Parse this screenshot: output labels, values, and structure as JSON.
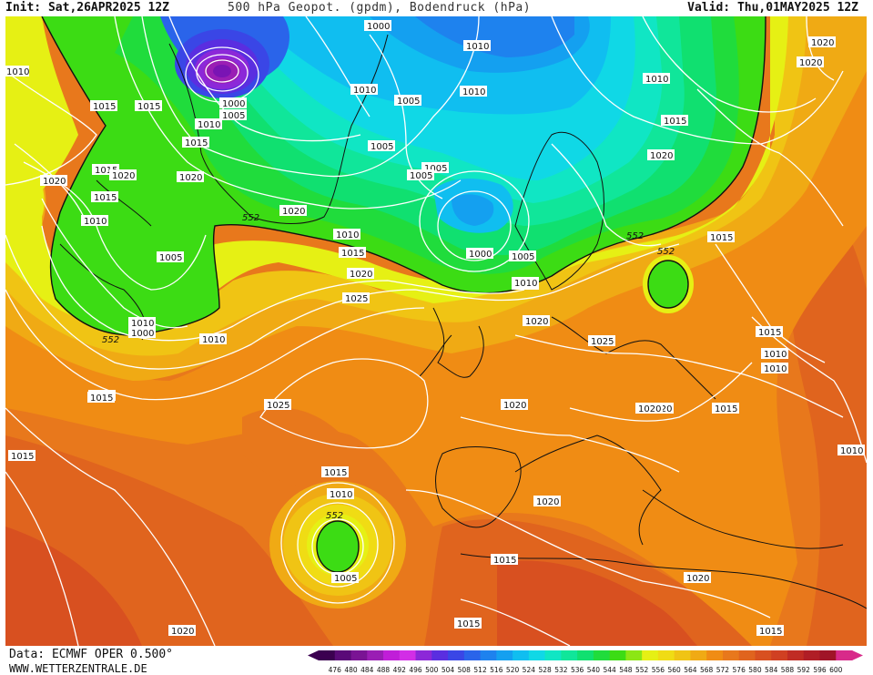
{
  "header": {
    "init": "Init: Sat,26APR2025 12Z",
    "title": "500 hPa Geopot. (gpdm), Bodendruck (hPa)",
    "valid": "Valid: Thu,01MAY2025 12Z"
  },
  "footer": {
    "data_source": "Data: ECMWF OPER 0.500°",
    "site": "WWW.WETTERZENTRALE.DE"
  },
  "colorbar": {
    "ticks": [
      "476",
      "480",
      "484",
      "488",
      "492",
      "496",
      "500",
      "504",
      "508",
      "512",
      "516",
      "520",
      "524",
      "528",
      "532",
      "536",
      "540",
      "544",
      "548",
      "552",
      "556",
      "560",
      "564",
      "568",
      "572",
      "576",
      "580",
      "584",
      "588",
      "592",
      "596",
      "600"
    ],
    "colors": [
      "#3b0050",
      "#5a0a78",
      "#7a1494",
      "#9a1eb4",
      "#c01ed8",
      "#d22ee6",
      "#8c28d8",
      "#5a2ee0",
      "#3a46e6",
      "#2a64ea",
      "#1e82ee",
      "#14a0f0",
      "#10bef0",
      "#10d8e6",
      "#10e6c4",
      "#10e69a",
      "#10e070",
      "#20dc3c",
      "#3cdc14",
      "#8ce614",
      "#e6f014",
      "#f0dc14",
      "#f0c414",
      "#f0aa14",
      "#f08c14",
      "#e8781c",
      "#e0641e",
      "#d85020",
      "#d04022",
      "#c02c24",
      "#b01e26",
      "#a01428",
      "#d82a8a"
    ],
    "arrow_left": "#3b0050",
    "arrow_right": "#d82a8a"
  },
  "isobars": {
    "labels": [
      "1000",
      "1010",
      "1015",
      "1020",
      "1020",
      "1015",
      "1010",
      "1005",
      "1000",
      "1010",
      "1005",
      "1005",
      "1010",
      "1010",
      "1005",
      "1005",
      "1000",
      "1005",
      "1010",
      "1015",
      "1020",
      "1025",
      "1010",
      "1015",
      "1020",
      "1025",
      "1015",
      "1020",
      "1015",
      "1010",
      "1005",
      "1020",
      "1015",
      "1015",
      "1010",
      "1020",
      "1020",
      "1015",
      "1020",
      "1025",
      "1020",
      "1020",
      "1015",
      "1010",
      "1015",
      "1010",
      "1010",
      "1015",
      "1020",
      "1010",
      "1020",
      "1015",
      "1020",
      "1010",
      "1010",
      "1015",
      "1005",
      "1000",
      "1015",
      "1015",
      "1010",
      "1020",
      "1015"
    ],
    "geopotential_label": "552"
  },
  "fields": {
    "low_pressure_center_color": "#7a14b4",
    "coast_color": "#000000",
    "isobar_color": "#ffffff"
  }
}
